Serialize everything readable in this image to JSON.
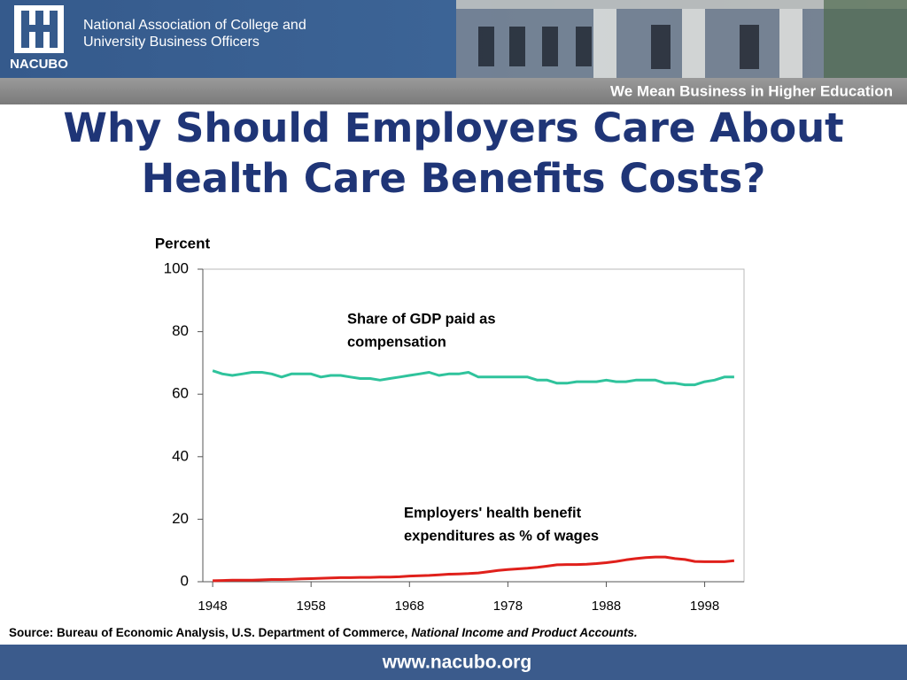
{
  "header": {
    "logo": "NACUBO",
    "org_lines": [
      "National Association of College and",
      "University Business Officers"
    ],
    "tagline": "We Mean Business in Higher Education"
  },
  "title_lines": [
    "Why Should Employers Care About",
    "Health Care Benefits Costs?"
  ],
  "chart_data": {
    "type": "line",
    "y_label": "Percent",
    "x": [
      1948,
      1949,
      1950,
      1951,
      1952,
      1953,
      1954,
      1955,
      1956,
      1957,
      1958,
      1959,
      1960,
      1961,
      1962,
      1963,
      1964,
      1965,
      1966,
      1967,
      1968,
      1969,
      1970,
      1971,
      1972,
      1973,
      1974,
      1975,
      1976,
      1977,
      1978,
      1979,
      1980,
      1981,
      1982,
      1983,
      1984,
      1985,
      1986,
      1987,
      1988,
      1989,
      1990,
      1991,
      1992,
      1993,
      1994,
      1995,
      1996,
      1997,
      1998,
      1999,
      2000,
      2001
    ],
    "series": [
      {
        "name": "Share of GDP paid as compensation",
        "color": "#2fc39c",
        "values": [
          67.5,
          66.5,
          66,
          66.5,
          67,
          67,
          66.5,
          65.5,
          66.5,
          66.5,
          66.5,
          65.5,
          66,
          66,
          65.5,
          65,
          65,
          64.5,
          65,
          65.5,
          66,
          66.5,
          67,
          66,
          66.5,
          66.5,
          67,
          65.5,
          65.5,
          65.5,
          65.5,
          65.5,
          65.5,
          64.5,
          64.5,
          63.5,
          63.5,
          64,
          64,
          64,
          64.5,
          64,
          64,
          64.5,
          64.5,
          64.5,
          63.5,
          63.5,
          63,
          63,
          64,
          64.5,
          65.5,
          65.5
        ]
      },
      {
        "name": "Employers' health benefit expenditures as % of wages",
        "color": "#e0201b",
        "values": [
          0.3,
          0.4,
          0.5,
          0.5,
          0.5,
          0.6,
          0.7,
          0.7,
          0.8,
          0.9,
          1.0,
          1.1,
          1.2,
          1.3,
          1.3,
          1.4,
          1.4,
          1.5,
          1.5,
          1.6,
          1.8,
          1.9,
          2.0,
          2.2,
          2.4,
          2.5,
          2.6,
          2.8,
          3.2,
          3.6,
          3.9,
          4.1,
          4.3,
          4.6,
          5.0,
          5.4,
          5.5,
          5.5,
          5.6,
          5.8,
          6.1,
          6.5,
          7.0,
          7.4,
          7.7,
          7.9,
          7.9,
          7.4,
          7.1,
          6.5,
          6.4,
          6.4,
          6.4,
          6.7
        ]
      }
    ],
    "annotations": [
      {
        "lines": [
          "Share of GDP paid as",
          "compensation"
        ]
      },
      {
        "lines": [
          "Employers' health benefit",
          "expenditures as % of wages"
        ]
      }
    ],
    "xlim": [
      1947,
      2002
    ],
    "xticks": [
      1948,
      1958,
      1968,
      1978,
      1988,
      1998
    ],
    "ylim": [
      0,
      100
    ],
    "yticks": [
      0,
      20,
      40,
      60,
      80,
      100
    ]
  },
  "source": {
    "text": "Source: Bureau of Economic Analysis, U.S. Department of Commerce,",
    "emphasis": "National Income and Product Accounts."
  },
  "footer": {
    "url": "www.nacubo.org"
  }
}
